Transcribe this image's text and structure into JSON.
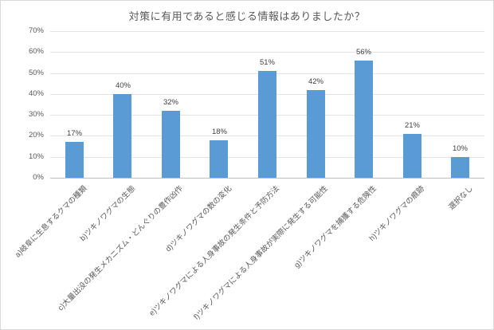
{
  "chart_data": {
    "type": "bar",
    "title": "対策に有用であると感じる情報はありましたか？",
    "categories": [
      "a)岐阜に生息するクマの種類",
      "b)ツキノワグマの生態",
      "c)大量出没の発生メカニズム・どんぐりの豊作凶作",
      "d)ツキノワグマの数の変化",
      "e)ツキノワグマによる人身事故の発生条件と予防方法",
      "f)ツキノワグマによる人身事故が実際に発生する可能性",
      "g)ツキノワグマを捕獲する危険性",
      "h)ツキノワグマの痕跡",
      "選択なし"
    ],
    "values": [
      17,
      40,
      32,
      18,
      51,
      42,
      56,
      21,
      10
    ],
    "value_labels": [
      "17%",
      "40%",
      "32%",
      "18%",
      "51%",
      "42%",
      "56%",
      "21%",
      "10%"
    ],
    "xlabel": "",
    "ylabel": "",
    "ylim": [
      0,
      70
    ],
    "ytick_labels": [
      "70%",
      "60%",
      "50%",
      "40%",
      "30%",
      "20%",
      "10%",
      "0%"
    ],
    "grid": true,
    "legend": "none",
    "colors": {
      "bar": "#5b9bd5",
      "gridline": "#e3e3e3",
      "axis_line": "#bfbfbf",
      "title_text": "#595959",
      "tick_text": "#595959",
      "value_text": "#404040",
      "border": "#d9d9d9",
      "background": "#ffffff"
    }
  }
}
